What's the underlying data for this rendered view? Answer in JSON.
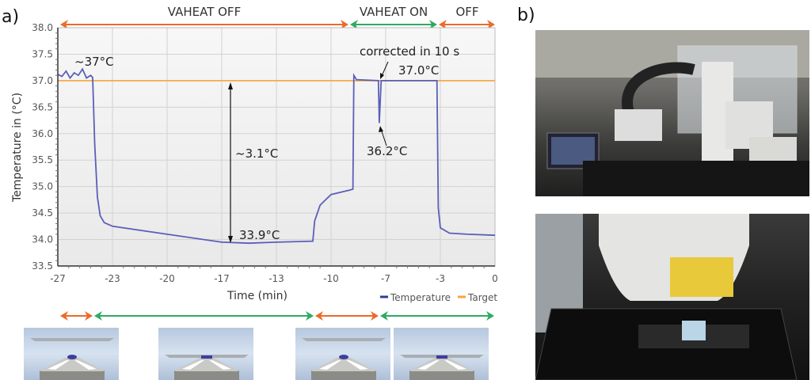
{
  "panel_labels": {
    "a": "a)",
    "b": "b)"
  },
  "phases_top": [
    {
      "label": "VAHEAT OFF",
      "color": "#ec6a2a"
    },
    {
      "label": "VAHEAT ON",
      "color": "#2eaa62"
    },
    {
      "label": "OFF",
      "color": "#ec6a2a"
    }
  ],
  "phases_bottom_colors": [
    "#ec6a2a",
    "#2eaa62",
    "#ec6a2a",
    "#2eaa62"
  ],
  "chart_data": {
    "type": "line",
    "xlabel": "Time (min)",
    "ylabel": "Temperature in (°C)",
    "xlim": [
      -27,
      0
    ],
    "ylim": [
      33.5,
      38.0
    ],
    "x_ticks": [
      "-27",
      "-23",
      "-20",
      "-17",
      "-13",
      "-10",
      "-7",
      "-3",
      "0"
    ],
    "y_ticks": [
      "33.5",
      "34.0",
      "34.5",
      "35.0",
      "35.5",
      "36.0",
      "36.5",
      "37.0",
      "37.5",
      "38.0"
    ],
    "grid": true,
    "legend_position": "bottom-right",
    "series": [
      {
        "name": "Temperature",
        "color": "#5b5fb8",
        "points": [
          [
            -27,
            37.12
          ],
          [
            -26.7,
            37.08
          ],
          [
            -26.4,
            37.18
          ],
          [
            -26.1,
            37.05
          ],
          [
            -25.8,
            37.15
          ],
          [
            -25.5,
            37.1
          ],
          [
            -25.2,
            37.22
          ],
          [
            -24.9,
            37.05
          ],
          [
            -24.6,
            37.1
          ],
          [
            -24.45,
            37.06
          ],
          [
            -24.3,
            35.8
          ],
          [
            -24.1,
            34.8
          ],
          [
            -23.9,
            34.45
          ],
          [
            -23.6,
            34.32
          ],
          [
            -23,
            34.25
          ],
          [
            -20,
            34.1
          ],
          [
            -17,
            33.95
          ],
          [
            -15,
            33.93
          ],
          [
            -13,
            33.95
          ],
          [
            -11,
            33.97
          ],
          [
            -10.9,
            34.35
          ],
          [
            -10.6,
            34.65
          ],
          [
            -10,
            34.85
          ],
          [
            -9,
            34.93
          ],
          [
            -8.8,
            34.95
          ],
          [
            -8.75,
            37.1
          ],
          [
            -8.6,
            37.02
          ],
          [
            -7.4,
            37.0
          ],
          [
            -7.35,
            36.2
          ],
          [
            -7.25,
            37.0
          ],
          [
            -3.25,
            37.0
          ],
          [
            -3.15,
            34.6
          ],
          [
            -3,
            34.22
          ],
          [
            -2.5,
            34.12
          ],
          [
            -1.5,
            34.1
          ],
          [
            0,
            34.08
          ]
        ]
      },
      {
        "name": "Target",
        "color": "#f5a63a",
        "points": [
          [
            -27,
            37.0
          ],
          [
            0,
            37.0
          ]
        ]
      }
    ],
    "annotations": {
      "start": "~37°C",
      "delta": "~3.1°C",
      "min": "33.9°C",
      "corrected": "corrected in 10 s",
      "recovered": "37.0°C",
      "dip": "36.2°C"
    }
  }
}
